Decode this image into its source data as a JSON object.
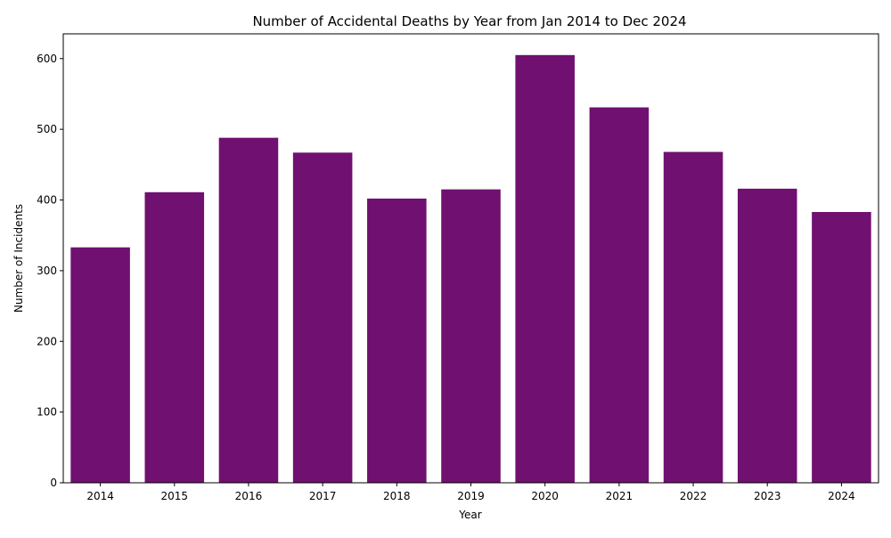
{
  "chart_data": {
    "type": "bar",
    "title": "Number of Accidental Deaths by Year from Jan 2014 to Dec 2024",
    "xlabel": "Year",
    "ylabel": "Number of Incidents",
    "categories": [
      "2014",
      "2015",
      "2016",
      "2017",
      "2018",
      "2019",
      "2020",
      "2021",
      "2022",
      "2023",
      "2024"
    ],
    "values": [
      333,
      411,
      488,
      467,
      402,
      415,
      605,
      531,
      468,
      416,
      383
    ],
    "ylim": [
      0,
      635
    ],
    "yticks": [
      0,
      100,
      200,
      300,
      400,
      500,
      600
    ],
    "grid": false,
    "legend": "none",
    "bar_color": "#701070"
  }
}
